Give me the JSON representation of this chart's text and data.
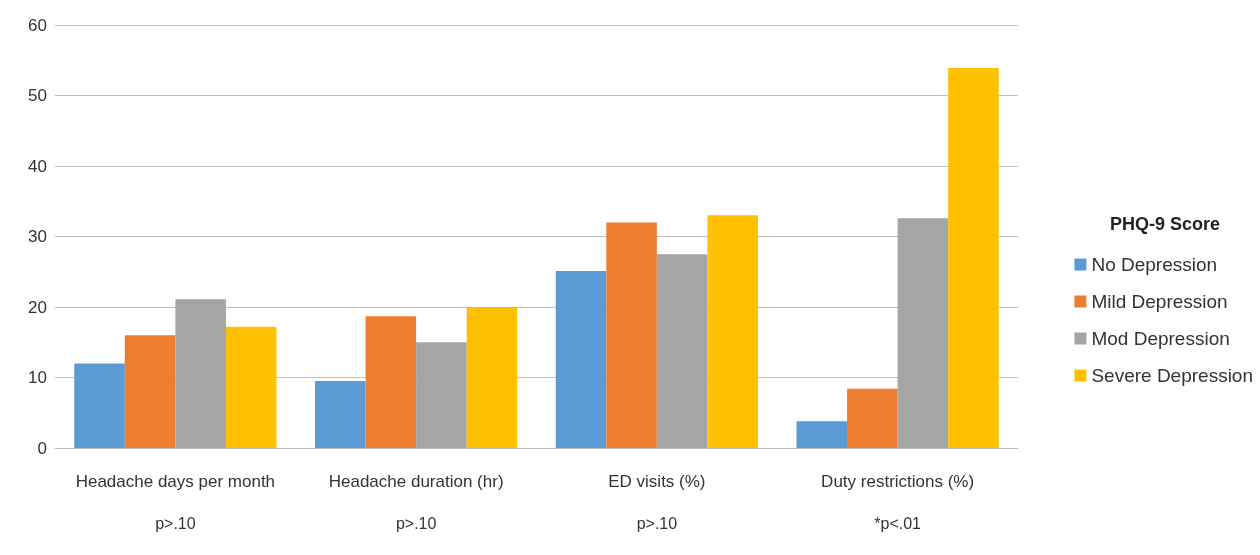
{
  "chart_data": {
    "type": "bar",
    "categories": [
      "Headache days per month",
      "Headache duration (hr)",
      "ED visits (%)",
      "Duty restrictions (%)"
    ],
    "series": [
      {
        "name": "No Depression",
        "color": "#5b9bd5",
        "values": [
          12,
          9.5,
          25.1,
          3.8
        ]
      },
      {
        "name": "Mild Depression",
        "color": "#ed7d31",
        "values": [
          16,
          18.7,
          32,
          8.4
        ]
      },
      {
        "name": "Mod Depression",
        "color": "#a5a5a5",
        "values": [
          21.1,
          15,
          27.5,
          32.6
        ]
      },
      {
        "name": "Severe Depression",
        "color": "#ffc000",
        "values": [
          17.2,
          20,
          33,
          53.9
        ]
      }
    ],
    "legend_title": "PHQ-9 Score",
    "legend": "right",
    "grid": "y",
    "ylim": [
      0,
      60
    ],
    "yticks": [
      0,
      10,
      20,
      30,
      40,
      50,
      60
    ],
    "annotations": [
      "p>.10",
      "p>.10",
      "p>.10",
      "*p<.01"
    ]
  }
}
